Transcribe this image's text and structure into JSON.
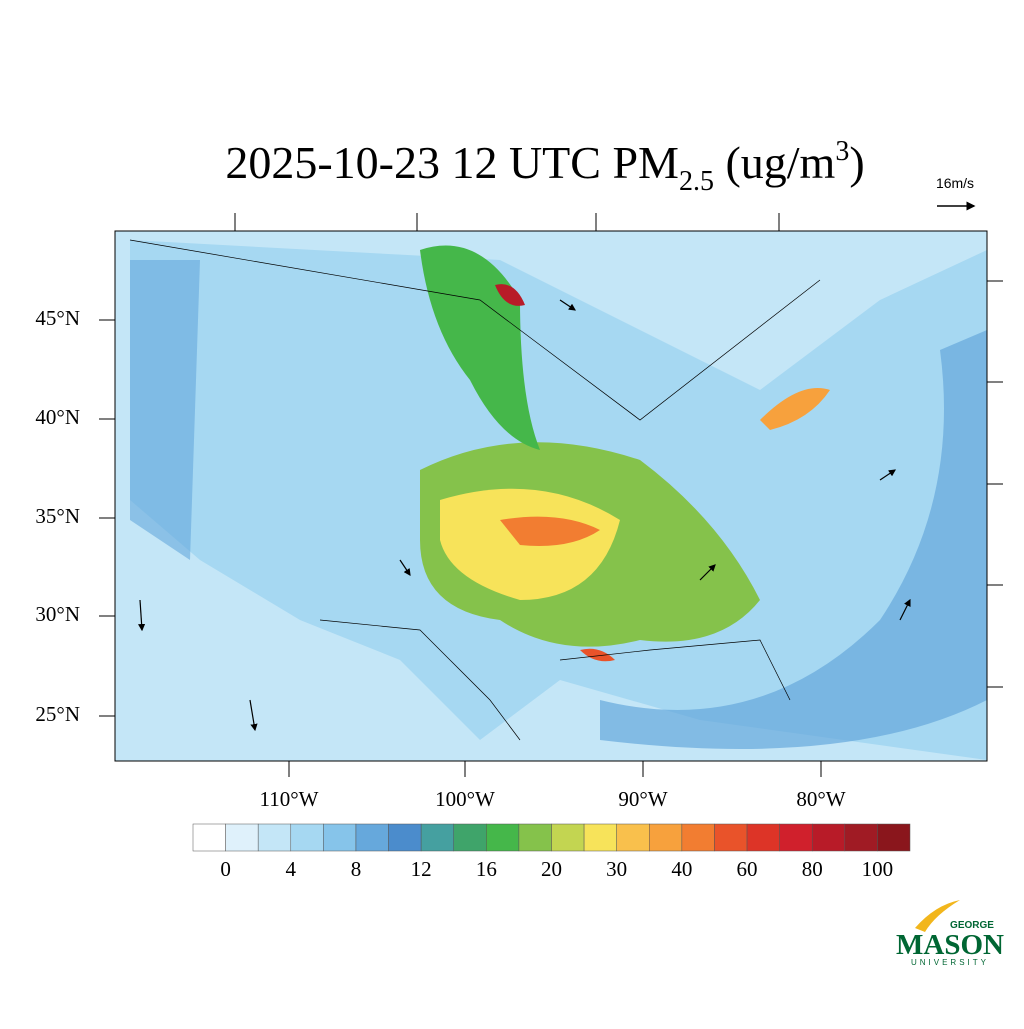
{
  "title": {
    "main": "2025-10-23 12 UTC PM",
    "sub": "2.5",
    "mid": " (ug/m",
    "sup": "3",
    "end": ")"
  },
  "vector_label": "16m/s",
  "lat_labels": [
    "45°N",
    "40°N",
    "35°N",
    "30°N",
    "25°N"
  ],
  "lon_labels": [
    "110°W",
    "100°W",
    "90°W",
    "80°W"
  ],
  "colorbar": {
    "colors": [
      "#ffffff",
      "#dff1fb",
      "#c4e6f7",
      "#a6d8f2",
      "#86c4ea",
      "#66a8dc",
      "#4b8ccc",
      "#45a0a0",
      "#3fa46a",
      "#45b74a",
      "#85c24b",
      "#c3d551",
      "#f7e35a",
      "#f9c04c",
      "#f7a13d",
      "#f27d31",
      "#e9532a",
      "#dd3427",
      "#d0202c",
      "#b81b28",
      "#a01b24",
      "#8a161c"
    ],
    "ticks": [
      0,
      4,
      8,
      12,
      16,
      20,
      30,
      40,
      60,
      80,
      100
    ]
  },
  "logo": {
    "top": "GEORGE",
    "main": "MASON",
    "bottom": "UNIVERSITY"
  }
}
